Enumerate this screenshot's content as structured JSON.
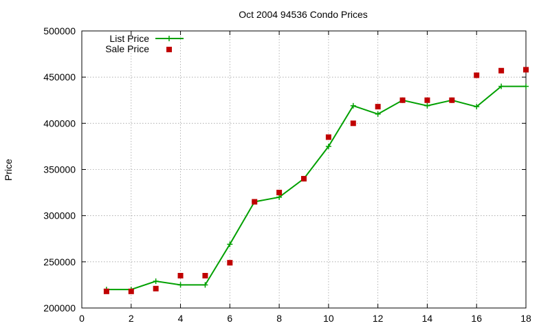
{
  "chart_data": {
    "type": "line",
    "title": "Oct 2004 94536 Condo Prices",
    "xlabel": "",
    "ylabel": "Price",
    "xlim": [
      0,
      18
    ],
    "ylim": [
      200000,
      500000
    ],
    "x_ticks": [
      0,
      2,
      4,
      6,
      8,
      10,
      12,
      14,
      16,
      18
    ],
    "y_ticks": [
      200000,
      250000,
      300000,
      350000,
      400000,
      450000,
      500000
    ],
    "grid": true,
    "legend_position": "top-left",
    "series": [
      {
        "name": "List Price",
        "style": "line-with-plus-markers",
        "color": "#00a000",
        "x": [
          1,
          2,
          3,
          4,
          5,
          6,
          7,
          8,
          9,
          10,
          11,
          12,
          13,
          14,
          15,
          16,
          17,
          18
        ],
        "y": [
          220000,
          220000,
          229000,
          225000,
          225000,
          269000,
          315000,
          320000,
          340000,
          375000,
          419000,
          410000,
          425000,
          419000,
          425000,
          418000,
          440000,
          440000
        ]
      },
      {
        "name": "Sale Price",
        "style": "square-points",
        "color": "#c00000",
        "x": [
          1,
          2,
          3,
          4,
          5,
          6,
          7,
          8,
          9,
          10,
          11,
          12,
          13,
          14,
          15,
          16,
          17,
          18
        ],
        "y": [
          218000,
          218000,
          221000,
          235000,
          235000,
          249000,
          315000,
          325000,
          340000,
          385000,
          400000,
          418000,
          425000,
          425000,
          425000,
          452000,
          457000,
          458000
        ]
      }
    ]
  }
}
